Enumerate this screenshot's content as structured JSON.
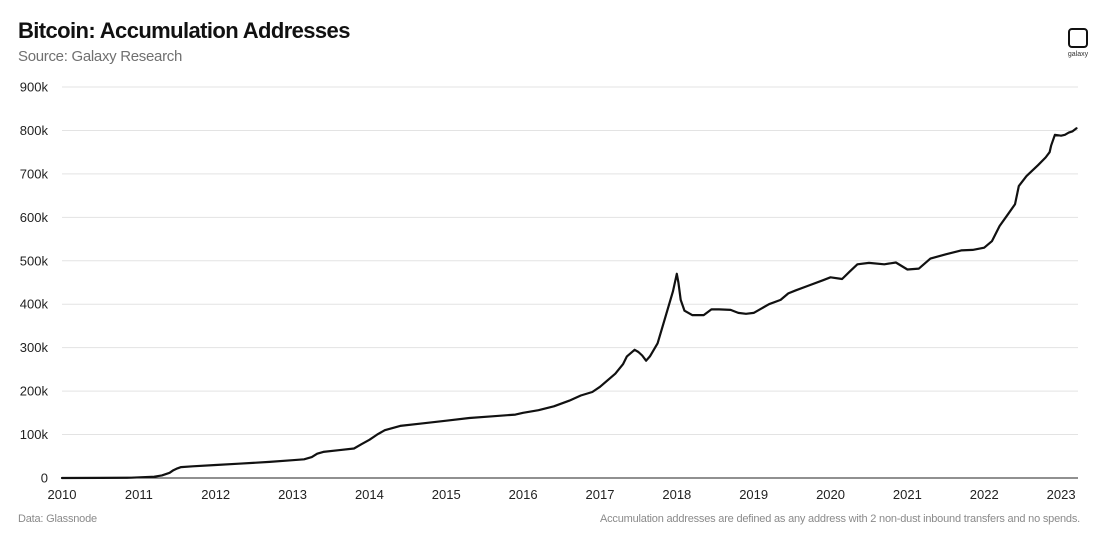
{
  "header": {
    "title": "Bitcoin: Accumulation Addresses",
    "subtitle": "Source: Galaxy Research",
    "logo_text": "galaxy",
    "logo_icon": "galaxy-logo-icon"
  },
  "footer": {
    "left": "Data: Glassnode",
    "right": "Accumulation addresses are defined as any address with 2 non-dust inbound transfers and no spends."
  },
  "chart_data": {
    "type": "line",
    "title": "Bitcoin: Accumulation Addresses",
    "xlabel": "",
    "ylabel": "",
    "xlim": [
      2010.0,
      2023.22
    ],
    "ylim": [
      0,
      900000
    ],
    "grid": "horizontal",
    "legend": "none",
    "x_ticks": [
      2010,
      2011,
      2012,
      2013,
      2014,
      2015,
      2016,
      2017,
      2018,
      2019,
      2020,
      2021,
      2022,
      2023
    ],
    "x_tick_labels": [
      "2010",
      "2011",
      "2012",
      "2013",
      "2014",
      "2015",
      "2016",
      "2017",
      "2018",
      "2019",
      "2020",
      "2021",
      "2022",
      "2023"
    ],
    "y_ticks": [
      0,
      100000,
      200000,
      300000,
      400000,
      500000,
      600000,
      700000,
      800000,
      900000
    ],
    "y_tick_labels": [
      "0",
      "100k",
      "200k",
      "300k",
      "400k",
      "500k",
      "600k",
      "700k",
      "800k",
      "900k"
    ],
    "line_color": "#111111",
    "grid_color": "#e3e3e3",
    "series": [
      {
        "x": [
          2010.0,
          2010.5,
          2010.9,
          2011.2,
          2011.3,
          2011.4,
          2011.45,
          2011.5,
          2011.55,
          2011.7,
          2012.0,
          2012.3,
          2012.7,
          2013.0,
          2013.15,
          2013.25,
          2013.32,
          2013.4,
          2013.6,
          2013.8,
          2013.9,
          2014.0,
          2014.1,
          2014.2,
          2014.4,
          2014.7,
          2015.0,
          2015.3,
          2015.6,
          2015.9,
          2016.0,
          2016.2,
          2016.4,
          2016.6,
          2016.75,
          2016.9,
          2017.0,
          2017.2,
          2017.3,
          2017.35,
          2017.45,
          2017.5,
          2017.55,
          2017.6,
          2017.65,
          2017.75,
          2017.85,
          2017.95,
          2018.0,
          2018.02,
          2018.05,
          2018.1,
          2018.2,
          2018.35,
          2018.45,
          2018.55,
          2018.7,
          2018.8,
          2018.9,
          2019.0,
          2019.2,
          2019.35,
          2019.45,
          2019.55,
          2019.7,
          2019.9,
          2020.0,
          2020.15,
          2020.25,
          2020.35,
          2020.5,
          2020.7,
          2020.85,
          2021.0,
          2021.15,
          2021.3,
          2021.5,
          2021.7,
          2021.85,
          2022.0,
          2022.1,
          2022.2,
          2022.3,
          2022.4,
          2022.45,
          2022.55,
          2022.7,
          2022.8,
          2022.85,
          2022.87,
          2022.92,
          2023.0,
          2023.05,
          2023.1,
          2023.15,
          2023.2
        ],
        "y": [
          0,
          200,
          800,
          3000,
          6000,
          12000,
          18000,
          22000,
          25000,
          27000,
          30000,
          33000,
          37000,
          41000,
          43000,
          48000,
          56000,
          60000,
          64000,
          68000,
          78000,
          88000,
          100000,
          110000,
          120000,
          126000,
          132000,
          138000,
          142000,
          146000,
          150000,
          156000,
          165000,
          178000,
          190000,
          198000,
          210000,
          240000,
          262000,
          280000,
          295000,
          290000,
          282000,
          270000,
          280000,
          310000,
          370000,
          430000,
          470000,
          450000,
          410000,
          385000,
          375000,
          375000,
          388000,
          388000,
          387000,
          380000,
          378000,
          380000,
          400000,
          410000,
          425000,
          432000,
          442000,
          455000,
          462000,
          458000,
          475000,
          492000,
          495000,
          492000,
          496000,
          480000,
          482000,
          505000,
          515000,
          524000,
          525000,
          530000,
          545000,
          580000,
          605000,
          630000,
          672000,
          695000,
          720000,
          738000,
          750000,
          765000,
          790000,
          788000,
          790000,
          795000,
          798000,
          805000
        ]
      }
    ]
  }
}
